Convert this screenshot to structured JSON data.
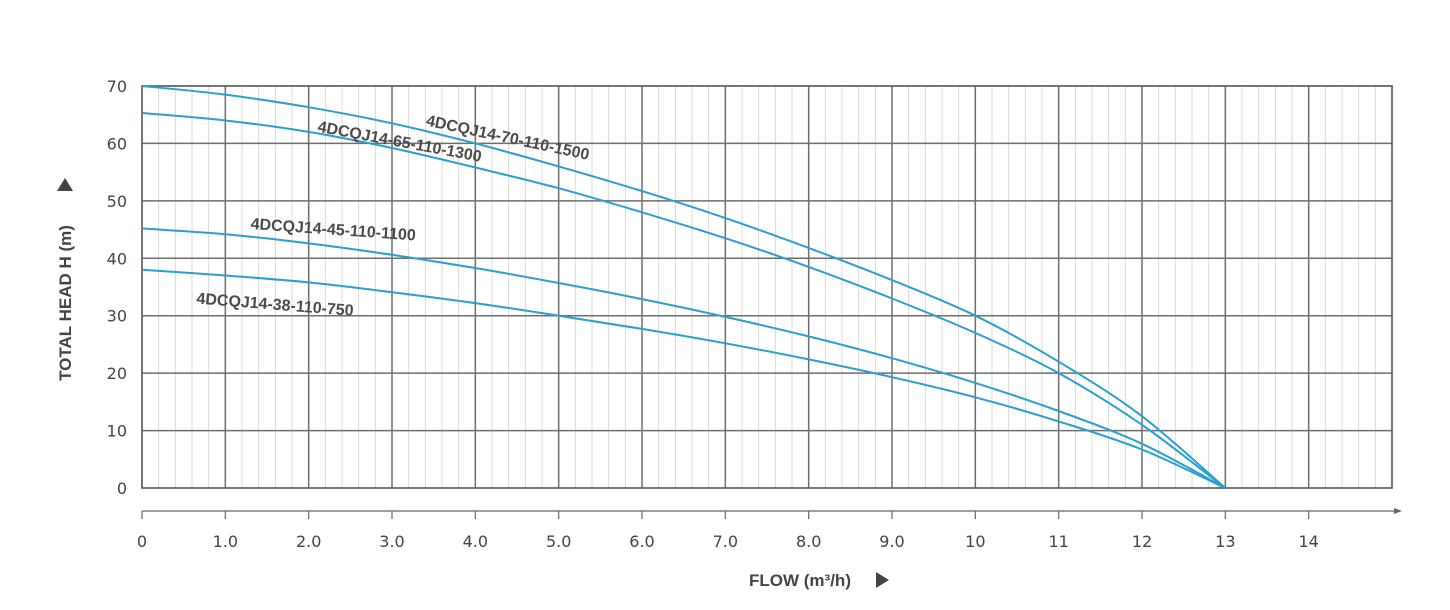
{
  "chart_data": {
    "type": "line",
    "xlabel": "FLOW (m³/h)",
    "ylabel": "TOTAL HEAD H (m)",
    "xlim": [
      0,
      15
    ],
    "ylim": [
      0,
      70
    ],
    "x_ticks": [
      "0",
      "1.0",
      "2.0",
      "3.0",
      "4.0",
      "5.0",
      "6.0",
      "7.0",
      "8.0",
      "9.0",
      "10",
      "11",
      "12",
      "13",
      "14"
    ],
    "y_ticks": [
      "0",
      "10",
      "20",
      "30",
      "40",
      "50",
      "60",
      "70"
    ],
    "grid": true,
    "line_color": "#2a9fd0",
    "series": [
      {
        "name": "4DCQJ14-70-110-1500",
        "x": [
          0,
          1,
          2,
          3,
          4,
          5,
          6,
          7,
          8,
          9,
          10,
          11,
          12,
          13
        ],
        "y": [
          70,
          68.5,
          66.3,
          63.5,
          60,
          56,
          51.7,
          47,
          41.8,
          36.2,
          30,
          22,
          12.5,
          0
        ]
      },
      {
        "name": "4DCQJ14-65-110-1300",
        "x": [
          0,
          1,
          2,
          3,
          4,
          5,
          6,
          7,
          8,
          9,
          10,
          11,
          12,
          13
        ],
        "y": [
          65.3,
          64,
          62,
          59.2,
          55.8,
          52.2,
          48,
          43.5,
          38.5,
          33,
          27,
          20,
          11,
          0
        ]
      },
      {
        "name": "4DCQJ14-45-110-1100",
        "x": [
          0,
          1,
          2,
          3,
          4,
          5,
          6,
          7,
          8,
          9,
          10,
          11,
          12,
          13
        ],
        "y": [
          45.2,
          44.2,
          42.6,
          40.6,
          38.3,
          35.7,
          32.9,
          29.8,
          26.4,
          22.6,
          18.3,
          13.4,
          7.7,
          0
        ]
      },
      {
        "name": "4DCQJ14-38-110-750",
        "x": [
          0,
          1,
          2,
          3,
          4,
          5,
          6,
          7,
          8,
          9,
          10,
          11,
          12,
          13
        ],
        "y": [
          38,
          37,
          35.8,
          34.1,
          32.2,
          30,
          27.7,
          25.2,
          22.4,
          19.3,
          15.8,
          11.6,
          6.7,
          0
        ]
      }
    ]
  }
}
